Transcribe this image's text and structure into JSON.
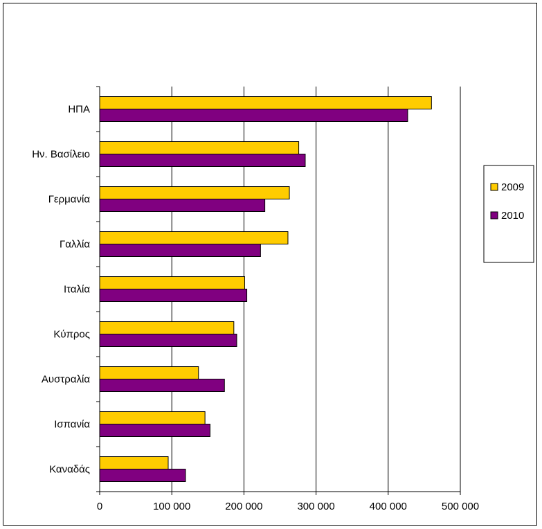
{
  "chart_data": {
    "type": "bar",
    "orientation": "horizontal",
    "title": "",
    "xlabel": "",
    "ylabel": "",
    "categories": [
      "ΗΠΑ",
      "Ην. Βασίλειο",
      "Γερμανία",
      "Γαλλία",
      "Ιταλία",
      "Κύπρος",
      "Αυστραλία",
      "Ισπανία",
      "Καναδάς"
    ],
    "series": [
      {
        "name": "2009",
        "color": "#FFCC00",
        "values": [
          460000,
          276000,
          263000,
          261000,
          201000,
          186000,
          137000,
          146000,
          95000
        ]
      },
      {
        "name": "2010",
        "color": "#800080",
        "values": [
          427000,
          285000,
          229000,
          223000,
          204000,
          190000,
          173000,
          153000,
          119000
        ]
      }
    ],
    "xlim": [
      0,
      500000
    ],
    "xticks": [
      0,
      100000,
      200000,
      300000,
      400000,
      500000
    ],
    "xtick_labels": [
      "0",
      "100 000",
      "200 000",
      "300 000",
      "400 000",
      "500 000"
    ],
    "grid": "vertical",
    "legend": "right"
  }
}
